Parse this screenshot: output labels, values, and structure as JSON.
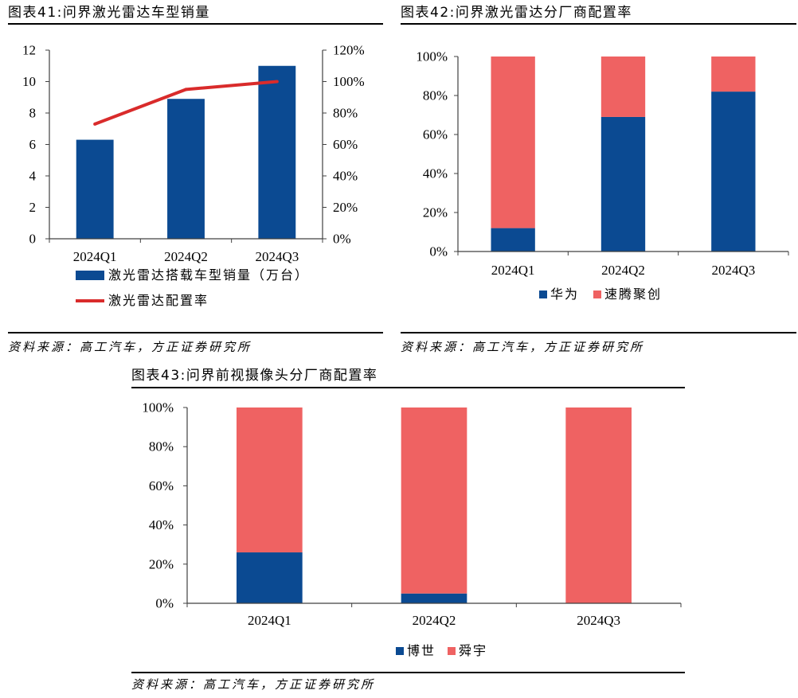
{
  "chart_data": [
    {
      "type": "bar",
      "title": "图表41:问界激光雷达车型销量",
      "categories": [
        "2024Q1",
        "2024Q2",
        "2024Q3"
      ],
      "series": [
        {
          "name": "激光雷达搭载车型销量（万台）",
          "type": "bar",
          "axis": "left",
          "values": [
            6.3,
            8.9,
            11.0
          ],
          "color": "#0B4A92"
        },
        {
          "name": "激光雷达配置率",
          "type": "line",
          "axis": "right",
          "values": [
            73,
            95,
            100
          ],
          "color": "#D92B2B"
        }
      ],
      "y_left": {
        "ylim": [
          0,
          12
        ],
        "tick_labels": [
          "0",
          "2",
          "4",
          "6",
          "8",
          "10",
          "12"
        ]
      },
      "y_right": {
        "ylim": [
          0,
          120
        ],
        "tick_labels": [
          "0%",
          "20%",
          "40%",
          "60%",
          "80%",
          "100%",
          "120%"
        ]
      },
      "grid": false,
      "legend": "bottom-left",
      "source": "资料来源：高工汽车，方正证券研究所"
    },
    {
      "type": "bar",
      "stacked": true,
      "title": "图表42:问界激光雷达分厂商配置率",
      "categories": [
        "2024Q1",
        "2024Q2",
        "2024Q3"
      ],
      "series": [
        {
          "name": "华为",
          "values": [
            12,
            69,
            82
          ],
          "color": "#0B4A92"
        },
        {
          "name": "速腾聚创",
          "values": [
            88,
            31,
            18
          ],
          "color": "#EF6262"
        }
      ],
      "y_left": {
        "ylim": [
          0,
          100
        ],
        "tick_labels": [
          "0%",
          "20%",
          "40%",
          "60%",
          "80%",
          "100%"
        ]
      },
      "grid": false,
      "legend": "bottom",
      "source": "资料来源：高工汽车，方正证券研究所"
    },
    {
      "type": "bar",
      "stacked": true,
      "title": "图表43:问界前视摄像头分厂商配置率",
      "categories": [
        "2024Q1",
        "2024Q2",
        "2024Q3"
      ],
      "series": [
        {
          "name": "博世",
          "values": [
            26,
            5,
            0
          ],
          "color": "#0B4A92"
        },
        {
          "name": "舜宇",
          "values": [
            74,
            95,
            100
          ],
          "color": "#EF6262"
        }
      ],
      "y_left": {
        "ylim": [
          0,
          100
        ],
        "tick_labels": [
          "0%",
          "20%",
          "40%",
          "60%",
          "80%",
          "100%"
        ]
      },
      "grid": false,
      "legend": "bottom",
      "source": "资料来源：高工汽车，方正证券研究所"
    }
  ]
}
